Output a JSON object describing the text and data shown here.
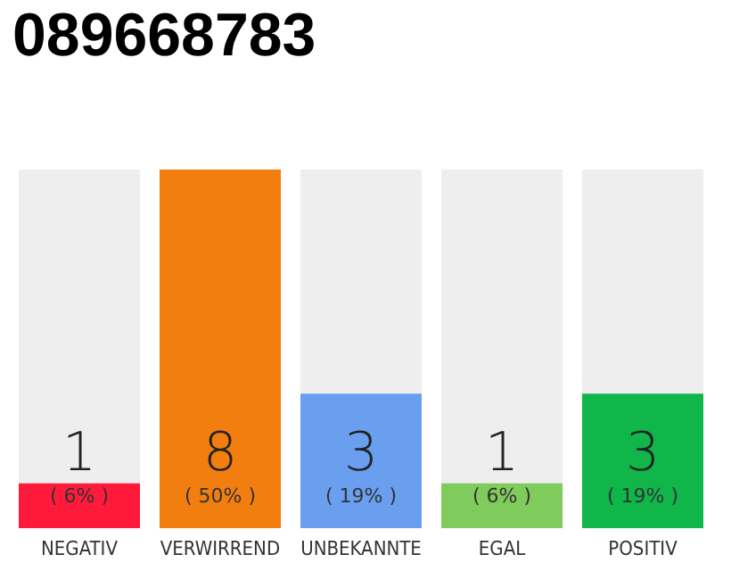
{
  "chart_data": {
    "type": "bar",
    "title": "089668783",
    "categories": [
      "NEGATIV",
      "VERWIRREND",
      "UNBEKANNTE",
      "EGAL",
      "POSITIV"
    ],
    "values": [
      1,
      8,
      3,
      1,
      3
    ],
    "colors": [
      "#ff1a3c",
      "#f27e0f",
      "#6a9ff0",
      "#7fcb5c",
      "#10b64a"
    ],
    "value_labels": [
      "1\n( 6% )",
      "8\n( 50% )",
      "3\n( 19% )",
      "1\n( 6% )",
      "3\n( 19% )"
    ],
    "tick_labels": "x"
  }
}
